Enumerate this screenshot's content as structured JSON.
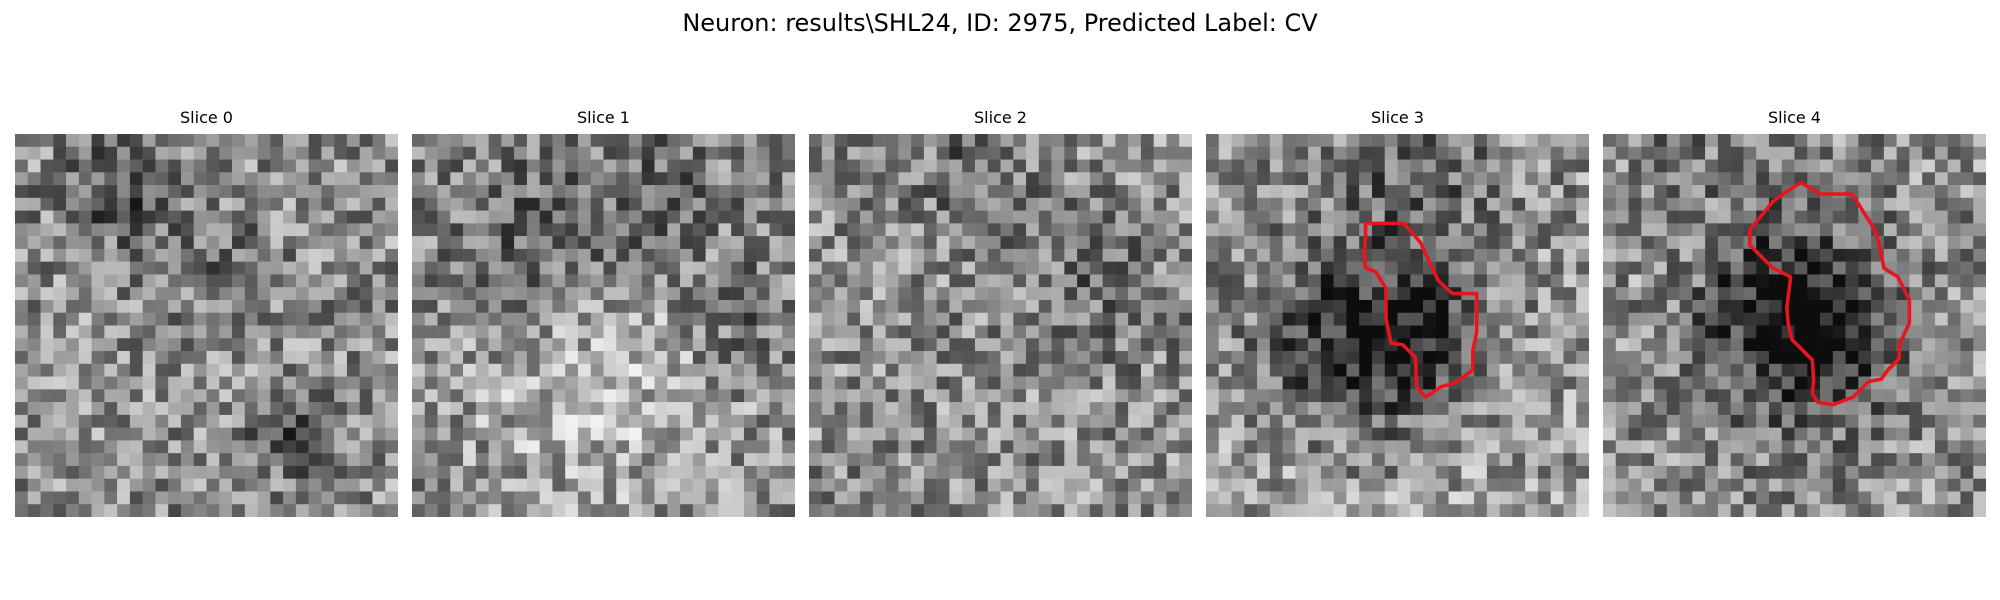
{
  "figure": {
    "title": "Neuron: results\\SHL24, ID: 2975, Predicted Label: CV"
  },
  "panels": [
    {
      "title": "Slice 0",
      "has_contour": false,
      "contour_color": ""
    },
    {
      "title": "Slice 1",
      "has_contour": false,
      "contour_color": ""
    },
    {
      "title": "Slice 2",
      "has_contour": false,
      "contour_color": ""
    },
    {
      "title": "Slice 3",
      "has_contour": true,
      "contour_color": "#e8141e"
    },
    {
      "title": "Slice 4",
      "has_contour": true,
      "contour_color": "#e8141e"
    }
  ]
}
